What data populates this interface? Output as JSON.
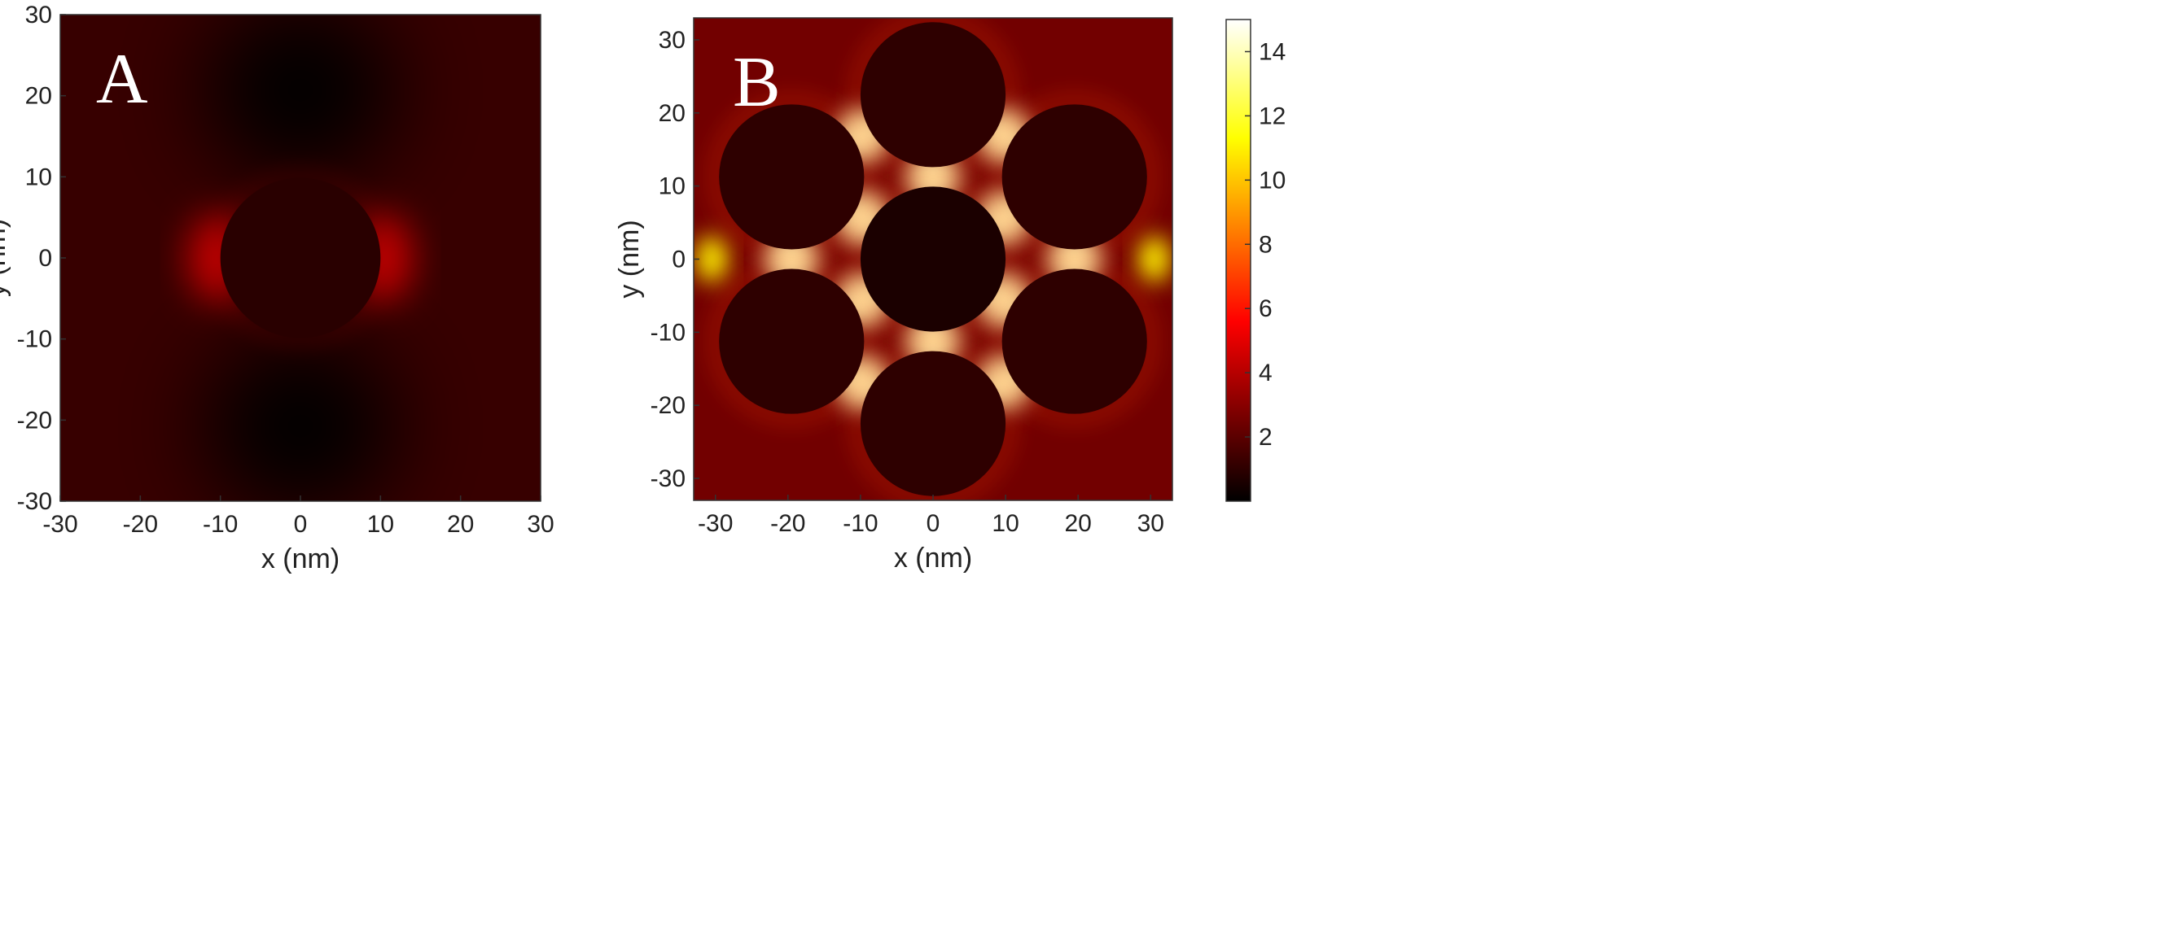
{
  "chart_data": [
    {
      "type": "heatmap",
      "panel_label": "A",
      "title": "",
      "xlabel": "x (nm)",
      "ylabel": "y (nm)",
      "xlim": [
        -30,
        30
      ],
      "ylim": [
        -30,
        30
      ],
      "xticks": [
        -30,
        -20,
        -10,
        0,
        10,
        20,
        30
      ],
      "yticks": [
        -30,
        -20,
        -10,
        0,
        10,
        20,
        30
      ],
      "xtick_labels": [
        "-30",
        "-20",
        "-10",
        "0",
        "10",
        "20",
        "30"
      ],
      "ytick_labels": [
        "-30",
        "-20",
        "-10",
        "0",
        "10",
        "20",
        "30"
      ],
      "particles": [
        {
          "center_x": 0,
          "center_y": 0,
          "radius": 10
        }
      ],
      "background_enhancement": 1.2,
      "colormap": "hot",
      "grid": false
    },
    {
      "type": "heatmap",
      "panel_label": "B",
      "title": "",
      "xlabel": "x (nm)",
      "ylabel": "y (nm)",
      "xlim": [
        -33,
        33
      ],
      "ylim": [
        -33,
        33
      ],
      "xticks": [
        -30,
        -20,
        -10,
        0,
        10,
        20,
        30
      ],
      "yticks": [
        -30,
        -20,
        -10,
        0,
        10,
        20,
        30
      ],
      "xtick_labels": [
        "-30",
        "-20",
        "-10",
        "0",
        "10",
        "20",
        "30"
      ],
      "ytick_labels": [
        "-30",
        "-20",
        "-10",
        "0",
        "10",
        "20",
        "30"
      ],
      "particles": [
        {
          "center_x": 0,
          "center_y": 0,
          "radius": 10
        },
        {
          "center_x": 0,
          "center_y": 22.5,
          "radius": 10
        },
        {
          "center_x": 0,
          "center_y": -22.5,
          "radius": 10
        },
        {
          "center_x": 19.5,
          "center_y": 11.25,
          "radius": 10
        },
        {
          "center_x": -19.5,
          "center_y": 11.25,
          "radius": 10
        },
        {
          "center_x": 19.5,
          "center_y": -11.25,
          "radius": 10
        },
        {
          "center_x": -19.5,
          "center_y": -11.25,
          "radius": 10
        }
      ],
      "background_enhancement": 2.5,
      "max_enhancement_in_gaps": 14,
      "colormap": "hot",
      "grid": false
    }
  ],
  "colorbar": {
    "range": [
      0,
      15
    ],
    "ticks": [
      2,
      4,
      6,
      8,
      10,
      12,
      14
    ],
    "tick_labels": [
      "2",
      "4",
      "6",
      "8",
      "10",
      "12",
      "14"
    ],
    "colormap": "hot",
    "stops": [
      {
        "value": 0,
        "color": "#000000"
      },
      {
        "value": 5.6,
        "color": "#ff0000"
      },
      {
        "value": 11.3,
        "color": "#ffff00"
      },
      {
        "value": 15,
        "color": "#ffffff"
      }
    ]
  }
}
